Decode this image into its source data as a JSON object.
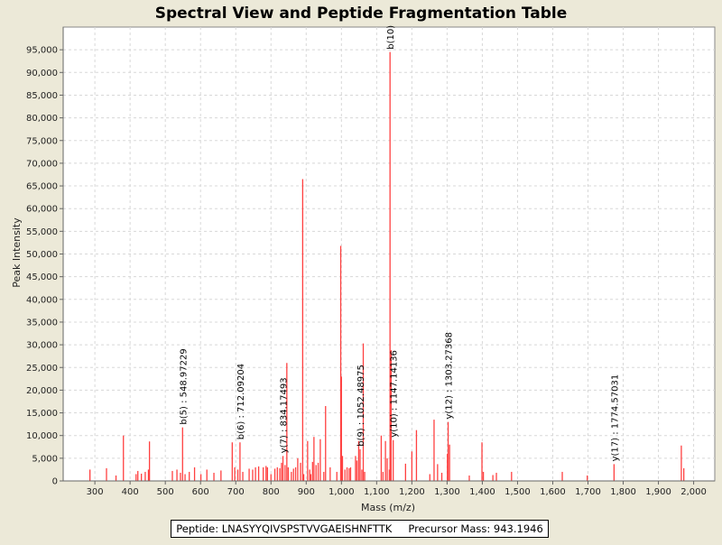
{
  "chart_data": {
    "type": "bar",
    "title": "Spectral View and Peptide Fragmentation Table",
    "xlabel": "Mass (m/z)",
    "ylabel": "Peak Intensity",
    "xlim": [
      210,
      2060
    ],
    "ylim": [
      0,
      100000
    ],
    "x_ticks": [
      300,
      400,
      500,
      600,
      700,
      800,
      900,
      1000,
      1100,
      1200,
      1300,
      1400,
      1500,
      1600,
      1700,
      1800,
      1900,
      2000
    ],
    "x_tick_labels": [
      "300",
      "400",
      "500",
      "600",
      "700",
      "800",
      "900",
      "1,000",
      "1,100",
      "1,200",
      "1,300",
      "1,400",
      "1,500",
      "1,600",
      "1,700",
      "1,800",
      "1,900",
      "2,000"
    ],
    "y_ticks": [
      0,
      5000,
      10000,
      15000,
      20000,
      25000,
      30000,
      35000,
      40000,
      45000,
      50000,
      55000,
      60000,
      65000,
      70000,
      75000,
      80000,
      85000,
      90000,
      95000
    ],
    "y_tick_labels": [
      "0",
      "5,000",
      "10,000",
      "15,000",
      "20,000",
      "25,000",
      "30,000",
      "35,000",
      "40,000",
      "45,000",
      "50,000",
      "55,000",
      "60,000",
      "65,000",
      "70,000",
      "75,000",
      "80,000",
      "85,000",
      "90,000",
      "95,000"
    ],
    "grid": true,
    "bar_color": "#ff4040",
    "peaks": [
      [
        286,
        2500
      ],
      [
        333,
        2800
      ],
      [
        360,
        1200
      ],
      [
        381,
        10000
      ],
      [
        417,
        1500
      ],
      [
        422,
        2200
      ],
      [
        432,
        1600
      ],
      [
        443,
        2000
      ],
      [
        452,
        2500
      ],
      [
        455,
        8700
      ],
      [
        520,
        2200
      ],
      [
        533,
        2500
      ],
      [
        543,
        1800
      ],
      [
        549,
        11800
      ],
      [
        556,
        1500
      ],
      [
        568,
        2000
      ],
      [
        583,
        3000
      ],
      [
        601,
        1500
      ],
      [
        618,
        2500
      ],
      [
        638,
        1800
      ],
      [
        658,
        2300
      ],
      [
        690,
        8500
      ],
      [
        697,
        3000
      ],
      [
        706,
        2500
      ],
      [
        712,
        8500
      ],
      [
        720,
        2000
      ],
      [
        738,
        2700
      ],
      [
        748,
        2500
      ],
      [
        756,
        3000
      ],
      [
        765,
        3200
      ],
      [
        778,
        3000
      ],
      [
        786,
        3300
      ],
      [
        790,
        3000
      ],
      [
        800,
        1500
      ],
      [
        811,
        2700
      ],
      [
        818,
        3000
      ],
      [
        825,
        2800
      ],
      [
        830,
        4000
      ],
      [
        834,
        5500
      ],
      [
        840,
        3500
      ],
      [
        845,
        26000
      ],
      [
        849,
        3000
      ],
      [
        858,
        2000
      ],
      [
        864,
        2700
      ],
      [
        870,
        3000
      ],
      [
        876,
        5000
      ],
      [
        884,
        4000
      ],
      [
        890,
        66500
      ],
      [
        893,
        1500
      ],
      [
        904,
        8800
      ],
      [
        910,
        2500
      ],
      [
        913,
        1500
      ],
      [
        918,
        4200
      ],
      [
        922,
        9700
      ],
      [
        928,
        3500
      ],
      [
        934,
        4000
      ],
      [
        940,
        9200
      ],
      [
        950,
        2000
      ],
      [
        955,
        16500
      ],
      [
        968,
        3000
      ],
      [
        987,
        2000
      ],
      [
        998,
        51800
      ],
      [
        1000,
        23000
      ],
      [
        1003,
        5500
      ],
      [
        1010,
        2500
      ],
      [
        1016,
        3000
      ],
      [
        1022,
        2800
      ],
      [
        1026,
        3000
      ],
      [
        1040,
        5500
      ],
      [
        1044,
        4500
      ],
      [
        1049,
        8800
      ],
      [
        1053,
        7000
      ],
      [
        1058,
        2500
      ],
      [
        1062,
        30300
      ],
      [
        1066,
        2000
      ],
      [
        1113,
        10000
      ],
      [
        1118,
        2000
      ],
      [
        1125,
        8800
      ],
      [
        1130,
        5000
      ],
      [
        1136,
        2500
      ],
      [
        1138,
        94500
      ],
      [
        1141,
        28800
      ],
      [
        1147,
        9000
      ],
      [
        1182,
        3800
      ],
      [
        1200,
        6500
      ],
      [
        1213,
        11200
      ],
      [
        1251,
        1500
      ],
      [
        1263,
        13500
      ],
      [
        1273,
        3700
      ],
      [
        1285,
        1800
      ],
      [
        1301,
        6000
      ],
      [
        1303,
        13000
      ],
      [
        1307,
        8000
      ],
      [
        1363,
        1200
      ],
      [
        1399,
        8500
      ],
      [
        1403,
        2000
      ],
      [
        1430,
        1300
      ],
      [
        1440,
        1800
      ],
      [
        1483,
        2000
      ],
      [
        1627,
        2000
      ],
      [
        1698,
        1200
      ],
      [
        1774,
        3700
      ],
      [
        1965,
        7800
      ],
      [
        1972,
        2800
      ]
    ],
    "annotations": [
      {
        "x": 548.97229,
        "y": 11800,
        "label": "b(5) : 548.97229"
      },
      {
        "x": 712.09204,
        "y": 8500,
        "label": "b(6) : 712.09204"
      },
      {
        "x": 834.17493,
        "y": 5500,
        "label": "y(7) : 834.17493"
      },
      {
        "x": 1052.48975,
        "y": 7000,
        "label": "b(9) : 1052.48975"
      },
      {
        "x": 1147.14136,
        "y": 9000,
        "label": "y(10) : 1147.14136"
      },
      {
        "x": 1138,
        "y": 94500,
        "label": "b(10)"
      },
      {
        "x": 1303.27368,
        "y": 13000,
        "label": "y(12) : 1303.27368"
      },
      {
        "x": 1774.57031,
        "y": 3700,
        "label": "y(17) : 1774.57031"
      }
    ]
  },
  "info": {
    "peptide_label": "Peptide:",
    "peptide": "LNASYYQIVSPSTVVGAEISHNFTTK",
    "precursor_label": "Precursor Mass:",
    "precursor": "943.1946"
  }
}
